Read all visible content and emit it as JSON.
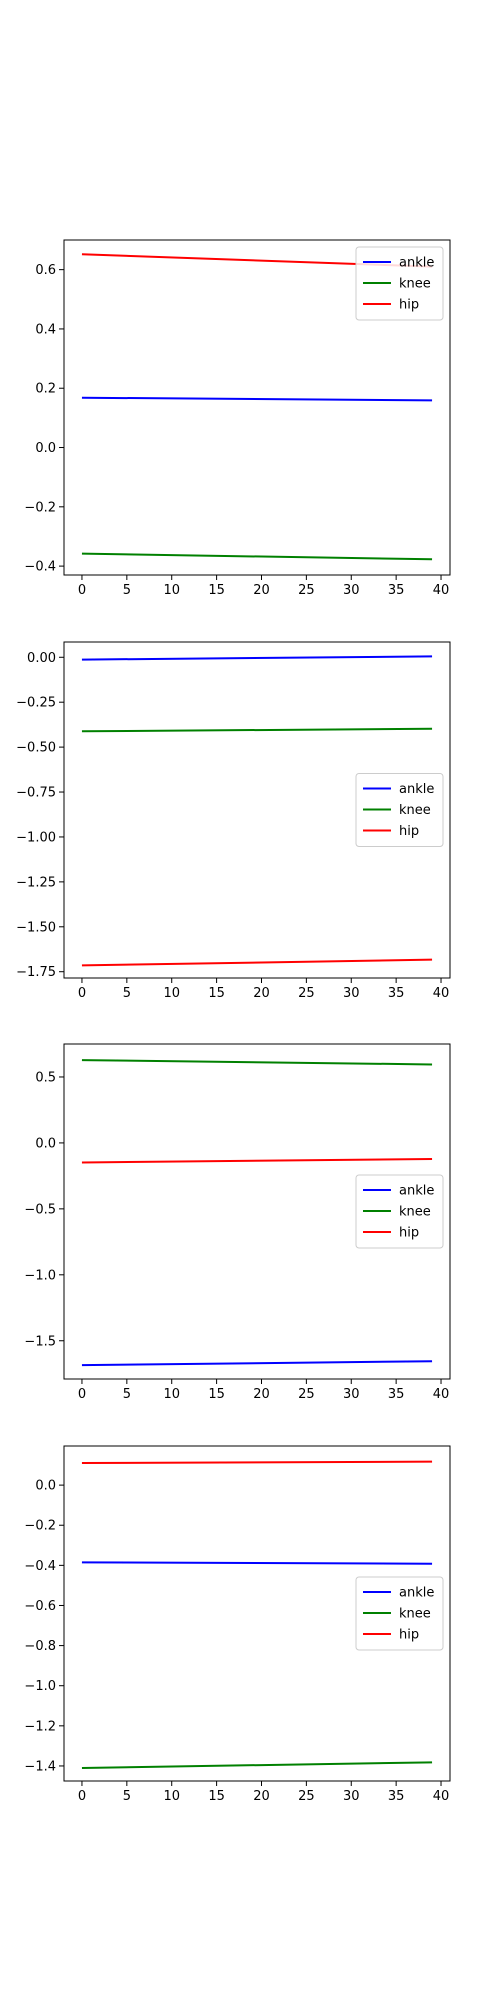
{
  "chart_data": [
    {
      "type": "line",
      "xlim": [
        -2,
        41
      ],
      "ylim": [
        -0.43,
        0.7
      ],
      "xticks": [
        0,
        5,
        10,
        15,
        20,
        25,
        30,
        35,
        40
      ],
      "xtick_labels": [
        "0",
        "5",
        "10",
        "15",
        "20",
        "25",
        "30",
        "35",
        "40"
      ],
      "yticks": [
        -0.4,
        -0.2,
        0.0,
        0.2,
        0.4,
        0.6
      ],
      "ytick_labels": [
        "−0.4",
        "−0.2",
        "0.0",
        "0.2",
        "0.4",
        "0.6"
      ],
      "legend_position": "top-right",
      "grid": false,
      "series": [
        {
          "name": "ankle",
          "color": "#0000ff",
          "x": [
            0,
            39
          ],
          "y": [
            0.168,
            0.159
          ]
        },
        {
          "name": "knee",
          "color": "#008000",
          "x": [
            0,
            39
          ],
          "y": [
            -0.358,
            -0.377
          ]
        },
        {
          "name": "hip",
          "color": "#ff0000",
          "x": [
            0,
            39
          ],
          "y": [
            0.652,
            0.61
          ]
        }
      ]
    },
    {
      "type": "line",
      "xlim": [
        -2,
        41
      ],
      "ylim": [
        -1.785,
        0.085
      ],
      "xticks": [
        0,
        5,
        10,
        15,
        20,
        25,
        30,
        35,
        40
      ],
      "xtick_labels": [
        "0",
        "5",
        "10",
        "15",
        "20",
        "25",
        "30",
        "35",
        "40"
      ],
      "yticks": [
        -1.75,
        -1.5,
        -1.25,
        -1.0,
        -0.75,
        -0.5,
        -0.25,
        0.0
      ],
      "ytick_labels": [
        "−1.75",
        "−1.50",
        "−1.25",
        "−1.00",
        "−0.75",
        "−0.50",
        "−0.25",
        "0.00"
      ],
      "legend_position": "center-right",
      "grid": false,
      "series": [
        {
          "name": "ankle",
          "color": "#0000ff",
          "x": [
            0,
            39
          ],
          "y": [
            -0.013,
            0.005
          ]
        },
        {
          "name": "knee",
          "color": "#008000",
          "x": [
            0,
            39
          ],
          "y": [
            -0.412,
            -0.398
          ]
        },
        {
          "name": "hip",
          "color": "#ff0000",
          "x": [
            0,
            39
          ],
          "y": [
            -1.715,
            -1.683
          ]
        }
      ]
    },
    {
      "type": "line",
      "xlim": [
        -2,
        41
      ],
      "ylim": [
        -1.79,
        0.75
      ],
      "xticks": [
        0,
        5,
        10,
        15,
        20,
        25,
        30,
        35,
        40
      ],
      "xtick_labels": [
        "0",
        "5",
        "10",
        "15",
        "20",
        "25",
        "30",
        "35",
        "40"
      ],
      "yticks": [
        -1.5,
        -1.0,
        -0.5,
        0.0,
        0.5
      ],
      "ytick_labels": [
        "−1.5",
        "−1.0",
        "−0.5",
        "0.0",
        "0.5"
      ],
      "legend_position": "center-right",
      "grid": false,
      "series": [
        {
          "name": "ankle",
          "color": "#0000ff",
          "x": [
            0,
            39
          ],
          "y": [
            -1.685,
            -1.655
          ]
        },
        {
          "name": "knee",
          "color": "#008000",
          "x": [
            0,
            39
          ],
          "y": [
            0.628,
            0.595
          ]
        },
        {
          "name": "hip",
          "color": "#ff0000",
          "x": [
            0,
            39
          ],
          "y": [
            -0.148,
            -0.122
          ]
        }
      ]
    },
    {
      "type": "line",
      "xlim": [
        -2,
        41
      ],
      "ylim": [
        -1.475,
        0.195
      ],
      "xticks": [
        0,
        5,
        10,
        15,
        20,
        25,
        30,
        35,
        40
      ],
      "xtick_labels": [
        "0",
        "5",
        "10",
        "15",
        "20",
        "25",
        "30",
        "35",
        "40"
      ],
      "yticks": [
        -1.4,
        -1.2,
        -1.0,
        -0.8,
        -0.6,
        -0.4,
        -0.2,
        0.0
      ],
      "ytick_labels": [
        "−1.4",
        "−1.2",
        "−1.0",
        "−0.8",
        "−0.6",
        "−0.4",
        "−0.2",
        "0.0"
      ],
      "legend_position": "center-right",
      "grid": false,
      "series": [
        {
          "name": "ankle",
          "color": "#0000ff",
          "x": [
            0,
            39
          ],
          "y": [
            -0.385,
            -0.392
          ]
        },
        {
          "name": "knee",
          "color": "#008000",
          "x": [
            0,
            39
          ],
          "y": [
            -1.41,
            -1.382
          ]
        },
        {
          "name": "hip",
          "color": "#ff0000",
          "x": [
            0,
            39
          ],
          "y": [
            0.11,
            0.117
          ]
        }
      ]
    }
  ]
}
